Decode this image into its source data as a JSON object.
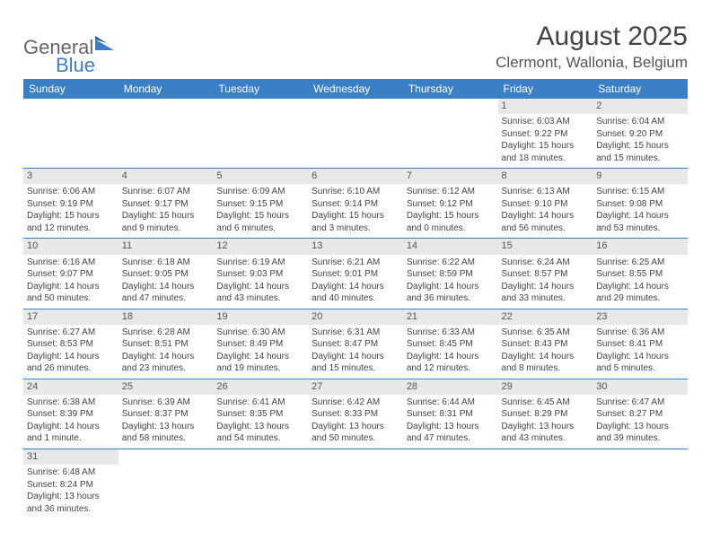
{
  "logo": {
    "text1": "General",
    "text2": "Blue"
  },
  "title": "August 2025",
  "location": "Clermont, Wallonia, Belgium",
  "colors": {
    "header_bg": "#3b7fc4",
    "header_fg": "#ffffff",
    "daynum_bg": "#e8e8e8",
    "row_border": "#3b7fc4",
    "text": "#444444"
  },
  "weekdays": [
    "Sunday",
    "Monday",
    "Tuesday",
    "Wednesday",
    "Thursday",
    "Friday",
    "Saturday"
  ],
  "weeks": [
    [
      null,
      null,
      null,
      null,
      null,
      {
        "n": "1",
        "sr": "6:03 AM",
        "ss": "9:22 PM",
        "dl": "15 hours and 18 minutes."
      },
      {
        "n": "2",
        "sr": "6:04 AM",
        "ss": "9:20 PM",
        "dl": "15 hours and 15 minutes."
      }
    ],
    [
      {
        "n": "3",
        "sr": "6:06 AM",
        "ss": "9:19 PM",
        "dl": "15 hours and 12 minutes."
      },
      {
        "n": "4",
        "sr": "6:07 AM",
        "ss": "9:17 PM",
        "dl": "15 hours and 9 minutes."
      },
      {
        "n": "5",
        "sr": "6:09 AM",
        "ss": "9:15 PM",
        "dl": "15 hours and 6 minutes."
      },
      {
        "n": "6",
        "sr": "6:10 AM",
        "ss": "9:14 PM",
        "dl": "15 hours and 3 minutes."
      },
      {
        "n": "7",
        "sr": "6:12 AM",
        "ss": "9:12 PM",
        "dl": "15 hours and 0 minutes."
      },
      {
        "n": "8",
        "sr": "6:13 AM",
        "ss": "9:10 PM",
        "dl": "14 hours and 56 minutes."
      },
      {
        "n": "9",
        "sr": "6:15 AM",
        "ss": "9:08 PM",
        "dl": "14 hours and 53 minutes."
      }
    ],
    [
      {
        "n": "10",
        "sr": "6:16 AM",
        "ss": "9:07 PM",
        "dl": "14 hours and 50 minutes."
      },
      {
        "n": "11",
        "sr": "6:18 AM",
        "ss": "9:05 PM",
        "dl": "14 hours and 47 minutes."
      },
      {
        "n": "12",
        "sr": "6:19 AM",
        "ss": "9:03 PM",
        "dl": "14 hours and 43 minutes."
      },
      {
        "n": "13",
        "sr": "6:21 AM",
        "ss": "9:01 PM",
        "dl": "14 hours and 40 minutes."
      },
      {
        "n": "14",
        "sr": "6:22 AM",
        "ss": "8:59 PM",
        "dl": "14 hours and 36 minutes."
      },
      {
        "n": "15",
        "sr": "6:24 AM",
        "ss": "8:57 PM",
        "dl": "14 hours and 33 minutes."
      },
      {
        "n": "16",
        "sr": "6:25 AM",
        "ss": "8:55 PM",
        "dl": "14 hours and 29 minutes."
      }
    ],
    [
      {
        "n": "17",
        "sr": "6:27 AM",
        "ss": "8:53 PM",
        "dl": "14 hours and 26 minutes."
      },
      {
        "n": "18",
        "sr": "6:28 AM",
        "ss": "8:51 PM",
        "dl": "14 hours and 23 minutes."
      },
      {
        "n": "19",
        "sr": "6:30 AM",
        "ss": "8:49 PM",
        "dl": "14 hours and 19 minutes."
      },
      {
        "n": "20",
        "sr": "6:31 AM",
        "ss": "8:47 PM",
        "dl": "14 hours and 15 minutes."
      },
      {
        "n": "21",
        "sr": "6:33 AM",
        "ss": "8:45 PM",
        "dl": "14 hours and 12 minutes."
      },
      {
        "n": "22",
        "sr": "6:35 AM",
        "ss": "8:43 PM",
        "dl": "14 hours and 8 minutes."
      },
      {
        "n": "23",
        "sr": "6:36 AM",
        "ss": "8:41 PM",
        "dl": "14 hours and 5 minutes."
      }
    ],
    [
      {
        "n": "24",
        "sr": "6:38 AM",
        "ss": "8:39 PM",
        "dl": "14 hours and 1 minute."
      },
      {
        "n": "25",
        "sr": "6:39 AM",
        "ss": "8:37 PM",
        "dl": "13 hours and 58 minutes."
      },
      {
        "n": "26",
        "sr": "6:41 AM",
        "ss": "8:35 PM",
        "dl": "13 hours and 54 minutes."
      },
      {
        "n": "27",
        "sr": "6:42 AM",
        "ss": "8:33 PM",
        "dl": "13 hours and 50 minutes."
      },
      {
        "n": "28",
        "sr": "6:44 AM",
        "ss": "8:31 PM",
        "dl": "13 hours and 47 minutes."
      },
      {
        "n": "29",
        "sr": "6:45 AM",
        "ss": "8:29 PM",
        "dl": "13 hours and 43 minutes."
      },
      {
        "n": "30",
        "sr": "6:47 AM",
        "ss": "8:27 PM",
        "dl": "13 hours and 39 minutes."
      }
    ],
    [
      {
        "n": "31",
        "sr": "6:48 AM",
        "ss": "8:24 PM",
        "dl": "13 hours and 36 minutes."
      },
      null,
      null,
      null,
      null,
      null,
      null
    ]
  ],
  "labels": {
    "sunrise": "Sunrise:",
    "sunset": "Sunset:",
    "daylight": "Daylight:"
  }
}
